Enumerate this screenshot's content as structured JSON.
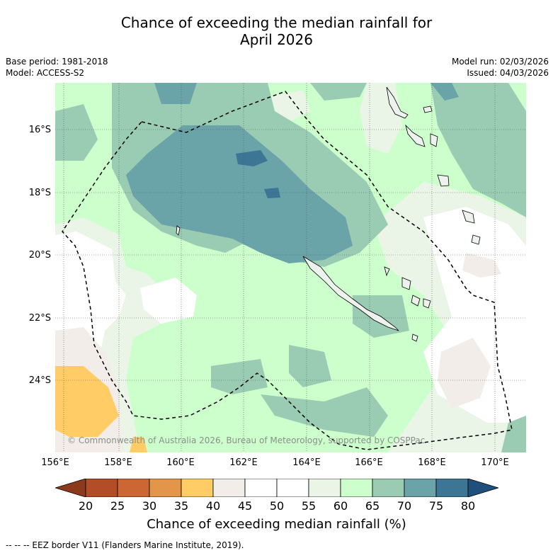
{
  "title": {
    "line1": "Chance of exceeding the median rainfall for",
    "line2": "April 2026"
  },
  "meta": {
    "base_period": "Base period: 1981-2018",
    "model": "Model: ACCESS-S2",
    "model_run": "Model run: 02/03/2026",
    "issued": "Issued: 04/03/2026"
  },
  "map": {
    "copyright": "© Commonwealth of Australia 2026, Bureau of Meteorology, supported by COSPPac",
    "lat_labels": [
      "16°S",
      "18°S",
      "20°S",
      "22°S",
      "24°S"
    ],
    "lon_labels": [
      "156°E",
      "158°E",
      "160°E",
      "162°E",
      "164°E",
      "166°E",
      "168°E",
      "170°E"
    ],
    "eez_border": "dashed"
  },
  "colorbar": {
    "label": "Chance of exceeding median rainfall (%)",
    "ticks": [
      "20",
      "25",
      "30",
      "35",
      "40",
      "45",
      "50",
      "55",
      "60",
      "65",
      "70",
      "75",
      "80"
    ],
    "colors": [
      "#b34d27",
      "#cc6633",
      "#e39649",
      "#ffcc66",
      "#f2ede8",
      "#ffffff",
      "#ffffff",
      "#eaf5e8",
      "#ccffcc",
      "#99ccb3",
      "#6aa3a8",
      "#3d7595"
    ],
    "extend_low_color": "#8b3a1c",
    "extend_high_color": "#1f4f7a"
  },
  "legend": {
    "eez": "--  --  -- EEZ border V11 (Flanders Marine Institute, 2019)."
  }
}
